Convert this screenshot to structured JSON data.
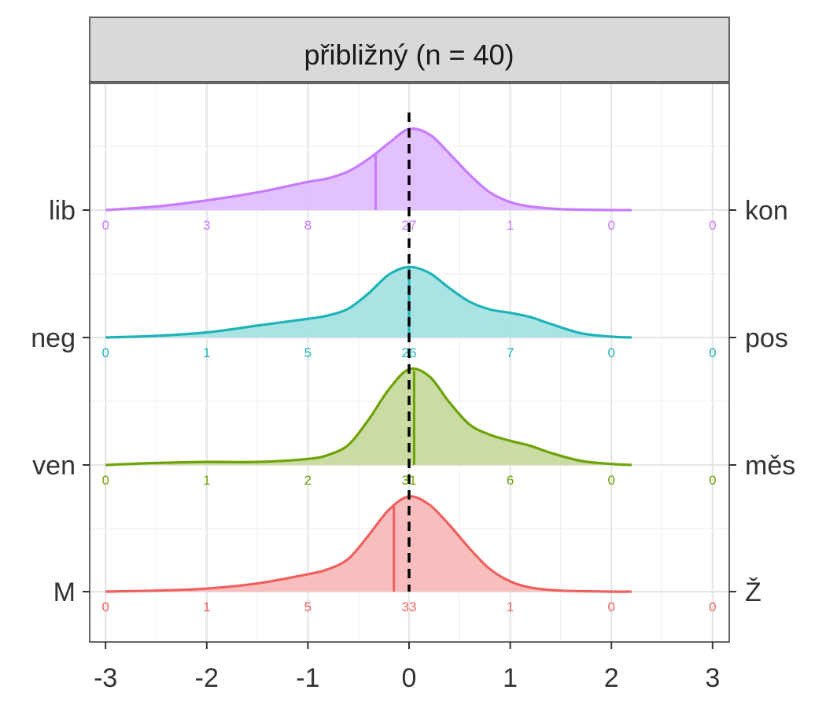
{
  "chart_data": {
    "type": "area",
    "subtype": "ridgeline-density",
    "title": "přibližný (n = 40)",
    "xlabel": "",
    "ylabel": "",
    "xlim": [
      -3.15,
      3.15
    ],
    "x_ticks": [
      -3,
      -2,
      -1,
      0,
      1,
      2,
      3
    ],
    "x_tick_labels": [
      "-3",
      "-2",
      "-1",
      "0",
      "1",
      "2",
      "3"
    ],
    "reference_line_x": 0,
    "count_positions_x": [
      -3,
      -2,
      -1,
      0,
      1,
      2,
      3
    ],
    "grid": true,
    "series": [
      {
        "left_label": "lib",
        "right_label": "kon",
        "color": "#C77CFF",
        "fill": "#E2BEFF",
        "mean": -0.33,
        "counts": [
          "0",
          "3",
          "8",
          "27",
          "1",
          "0",
          "0"
        ],
        "density": {
          "x": [
            -3.0,
            -2.5,
            -2.0,
            -1.5,
            -1.0,
            -0.8,
            -0.6,
            -0.4,
            -0.2,
            0.0,
            0.2,
            0.4,
            0.6,
            0.8,
            1.0,
            1.2,
            1.5,
            2.0,
            2.2
          ],
          "y": [
            0.0,
            0.04,
            0.11,
            0.2,
            0.32,
            0.36,
            0.44,
            0.58,
            0.76,
            0.92,
            0.86,
            0.64,
            0.4,
            0.2,
            0.09,
            0.04,
            0.01,
            0.0,
            0.0
          ]
        }
      },
      {
        "left_label": "neg",
        "right_label": "pos",
        "color": "#1FB3B7",
        "fill": "#A5E2E3",
        "mean": 0.0,
        "counts": [
          "0",
          "1",
          "5",
          "26",
          "7",
          "0",
          "0"
        ],
        "density": {
          "x": [
            -3.0,
            -2.5,
            -2.0,
            -1.5,
            -1.0,
            -0.8,
            -0.6,
            -0.4,
            -0.2,
            0.0,
            0.2,
            0.4,
            0.6,
            0.8,
            1.0,
            1.2,
            1.4,
            1.7,
            2.0,
            2.2
          ],
          "y": [
            0.0,
            0.02,
            0.06,
            0.14,
            0.22,
            0.26,
            0.34,
            0.52,
            0.74,
            0.83,
            0.76,
            0.58,
            0.42,
            0.33,
            0.29,
            0.24,
            0.16,
            0.05,
            0.01,
            0.0
          ]
        }
      },
      {
        "left_label": "ven",
        "right_label": "měs",
        "color": "#6DA306",
        "fill": "#C5DA9F",
        "mean": 0.05,
        "counts": [
          "0",
          "1",
          "2",
          "31",
          "6",
          "0",
          "0"
        ],
        "density": {
          "x": [
            -3.0,
            -2.5,
            -2.0,
            -1.5,
            -1.0,
            -0.8,
            -0.6,
            -0.4,
            -0.2,
            0.0,
            0.2,
            0.4,
            0.6,
            0.8,
            1.0,
            1.2,
            1.4,
            1.7,
            2.0,
            2.2
          ],
          "y": [
            0.0,
            0.02,
            0.03,
            0.03,
            0.06,
            0.1,
            0.2,
            0.45,
            0.75,
            0.95,
            0.88,
            0.62,
            0.4,
            0.3,
            0.24,
            0.19,
            0.12,
            0.04,
            0.01,
            0.0
          ]
        }
      },
      {
        "left_label": "M",
        "right_label": "Ž",
        "color": "#F06060",
        "fill": "#F8BABA",
        "mean": -0.15,
        "counts": [
          "0",
          "1",
          "5",
          "33",
          "1",
          "0",
          "0"
        ],
        "density": {
          "x": [
            -3.0,
            -2.5,
            -2.0,
            -1.5,
            -1.0,
            -0.8,
            -0.6,
            -0.4,
            -0.2,
            0.0,
            0.2,
            0.4,
            0.6,
            0.8,
            1.0,
            1.2,
            1.5,
            2.0,
            2.2
          ],
          "y": [
            0.0,
            0.01,
            0.03,
            0.08,
            0.17,
            0.22,
            0.32,
            0.55,
            0.8,
            0.93,
            0.85,
            0.65,
            0.42,
            0.22,
            0.1,
            0.04,
            0.01,
            0.0,
            0.0
          ]
        }
      }
    ]
  }
}
